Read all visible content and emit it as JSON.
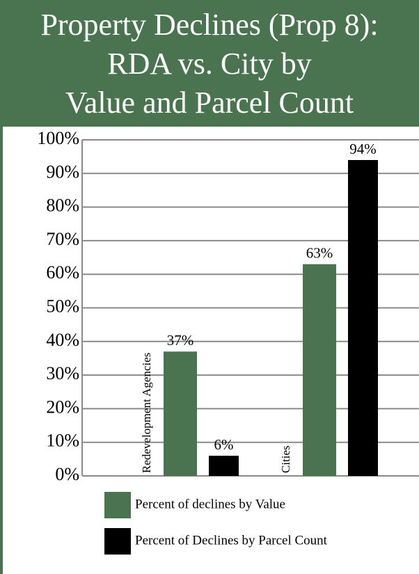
{
  "chart_data": {
    "type": "bar",
    "title_lines": [
      "Property Declines (Prop 8):",
      "RDA vs. City by",
      "Value and Parcel Count"
    ],
    "categories": [
      "Redevelopment Agencies",
      "Cities"
    ],
    "series": [
      {
        "name": "Percent of declines by Value",
        "color": "#4a7350",
        "values": [
          37,
          63
        ],
        "value_labels": [
          "37%",
          "63%"
        ]
      },
      {
        "name": "Percent of Declines by Parcel Count",
        "color": "#000000",
        "values": [
          6,
          94
        ],
        "value_labels": [
          "6%",
          "94%"
        ]
      }
    ],
    "ylim": [
      0,
      100
    ],
    "yticks": [
      {
        "value": 0,
        "label": "0%"
      },
      {
        "value": 10,
        "label": "10%"
      },
      {
        "value": 20,
        "label": "20%"
      },
      {
        "value": 30,
        "label": "30%"
      },
      {
        "value": 40,
        "label": "40%"
      },
      {
        "value": 50,
        "label": "50%"
      },
      {
        "value": 60,
        "label": "60%"
      },
      {
        "value": 70,
        "label": "70%"
      },
      {
        "value": 80,
        "label": "80%"
      },
      {
        "value": 90,
        "label": "90%"
      },
      {
        "value": 100,
        "label": "100%"
      }
    ],
    "grid": true
  }
}
